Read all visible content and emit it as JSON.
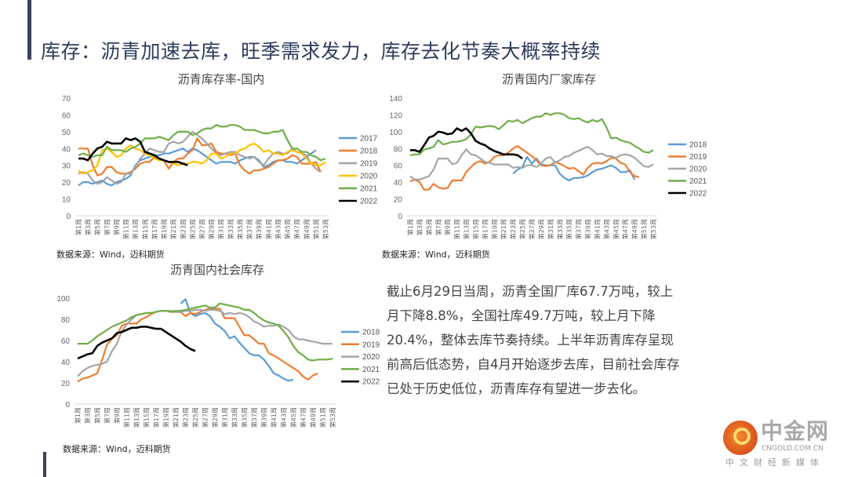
{
  "title": "库存：沥青加速去库，旺季需求发力，库存去化节奏大概率持续",
  "paragraph": "截止6月29日当周，沥青全国厂库67.7万吨，较上月下降8.8%，全国社库49.7万吨，较上月下降20.4%，整体去库节奏持续。上半年沥青库存呈现前高后低态势，自4月开始逐步去库，目前社会库存已处于历史低位，沥青库存有望进一步去化。",
  "watermark": {
    "cn": "中金网",
    "en": "CNGOLD.COM.CN",
    "tag": "中文财经新媒体"
  },
  "colors": {
    "2017": "#5b9bd5",
    "2018": "#ed7d31",
    "2019": "#a5a5a5",
    "2020": "#ffc000",
    "2021": "#70ad47",
    "2022": "#000000",
    "accent": "#3a4257"
  },
  "chart_data": [
    {
      "type": "line",
      "title": "沥青库存率-国内",
      "source": "数据来源：Wind，迈科期货",
      "ylim": [
        0,
        70
      ],
      "yticks": [
        0,
        10,
        20,
        30,
        40,
        50,
        60,
        70
      ],
      "x_labels": [
        "第1周",
        "第3周",
        "第5周",
        "第7周",
        "第9周",
        "第11周",
        "第13周",
        "第15周",
        "第17周",
        "第19周",
        "第21周",
        "第23周",
        "第25周",
        "第27周",
        "第29周",
        "第31周",
        "第33周",
        "第35周",
        "第37周",
        "第39周",
        "第41周",
        "第43周",
        "第45周",
        "第47周",
        "第49周",
        "第51周",
        "第53周"
      ],
      "legend": "right",
      "series": [
        {
          "name": "2017",
          "color": "#5b9bd5",
          "start_week": 1,
          "values": [
            18,
            20,
            20,
            19,
            20,
            21,
            19,
            18,
            20,
            21,
            22,
            24,
            30,
            33,
            34,
            35,
            36,
            36,
            37,
            37,
            38,
            39,
            40,
            38,
            40,
            39,
            37,
            35,
            33,
            31,
            32,
            32,
            32,
            31,
            33,
            34,
            35,
            35,
            33,
            29,
            30,
            32,
            33,
            33,
            32,
            32,
            31,
            33,
            35,
            37,
            39
          ]
        },
        {
          "name": "2018",
          "color": "#ed7d31",
          "start_week": 1,
          "values": [
            40,
            40,
            40,
            30,
            24,
            25,
            29,
            29,
            26,
            25,
            25,
            26,
            28,
            31,
            32,
            32,
            35,
            33,
            33,
            28,
            32,
            34,
            34,
            37,
            39,
            46,
            42,
            42,
            43,
            38,
            37,
            37,
            36,
            37,
            30,
            27,
            25,
            27,
            27,
            28,
            29,
            31,
            33,
            33,
            34,
            36,
            35,
            31,
            31,
            31,
            32,
            26
          ]
        },
        {
          "name": "2019",
          "color": "#a5a5a5",
          "start_week": 1,
          "values": [
            25,
            26,
            25,
            21,
            19,
            20,
            23,
            21,
            19,
            20,
            25,
            25,
            29,
            34,
            37,
            40,
            39,
            38,
            38,
            43,
            44,
            43,
            44,
            47,
            50,
            48,
            46,
            43,
            40,
            37,
            36,
            37,
            38,
            38,
            36,
            35,
            34,
            35,
            32,
            30,
            34,
            37,
            38,
            37,
            37,
            40,
            38,
            37,
            36,
            31,
            28,
            26
          ]
        },
        {
          "name": "2020",
          "color": "#ffc000",
          "start_week": 1,
          "values": [
            27,
            25,
            26,
            27,
            30,
            39,
            40,
            38,
            35,
            36,
            40,
            42,
            40,
            39,
            37,
            36,
            34,
            33,
            33,
            32,
            31,
            30,
            31,
            31,
            32,
            32,
            31,
            33,
            37,
            37,
            34,
            35,
            37,
            37,
            39,
            40,
            42,
            43,
            41,
            38,
            39,
            37,
            37,
            36,
            38,
            39,
            38,
            37,
            34,
            31,
            30,
            30,
            32
          ]
        },
        {
          "name": "2021",
          "color": "#70ad47",
          "start_week": 1,
          "values": [
            36,
            37,
            36,
            35,
            36,
            36,
            41,
            39,
            39,
            39,
            38,
            40,
            41,
            43,
            46,
            46,
            46,
            47,
            46,
            45,
            48,
            50,
            50,
            50,
            48,
            49,
            51,
            52,
            52,
            54,
            53,
            53,
            54,
            54,
            53,
            51,
            51,
            51,
            50,
            49,
            49,
            50,
            50,
            51,
            45,
            40,
            40,
            38,
            38,
            36,
            35,
            33,
            34
          ]
        },
        {
          "name": "2022",
          "color": "#000000",
          "start_week": 1,
          "values": [
            34,
            34,
            33,
            37,
            40,
            41,
            44,
            43,
            43,
            43,
            46,
            45,
            46,
            44,
            38,
            37,
            36,
            34,
            33,
            32,
            32,
            32,
            31,
            30
          ]
        }
      ]
    },
    {
      "type": "line",
      "title": "沥青国内厂家库存",
      "source": "数据来源：Wind，迈科期货",
      "ylim": [
        0,
        140
      ],
      "yticks": [
        0,
        20,
        40,
        60,
        80,
        100,
        120,
        140
      ],
      "x_labels": [
        "第1周",
        "第3周",
        "第5周",
        "第7周",
        "第9周",
        "第11周",
        "第13周",
        "第15周",
        "第17周",
        "第19周",
        "第21周",
        "第23周",
        "第25周",
        "第27周",
        "第29周",
        "第31周",
        "第33周",
        "第35周",
        "第37周",
        "第39周",
        "第41周",
        "第43周",
        "第45周",
        "第47周",
        "第49周",
        "第51周",
        "第53周"
      ],
      "legend": "right",
      "series": [
        {
          "name": "2018",
          "color": "#5b9bd5",
          "start_week": 23,
          "values": [
            50,
            55,
            58,
            70,
            62,
            68,
            61,
            60,
            60,
            60,
            50,
            45,
            42,
            45,
            45,
            46,
            48,
            52,
            55,
            56,
            58,
            60,
            57,
            52,
            52,
            54,
            43
          ]
        },
        {
          "name": "2019",
          "color": "#ed7d31",
          "start_week": 1,
          "values": [
            41,
            43,
            40,
            31,
            31,
            38,
            34,
            32,
            33,
            42,
            42,
            42,
            52,
            58,
            63,
            65,
            62,
            64,
            70,
            72,
            72,
            75,
            80,
            83,
            79,
            75,
            71,
            66,
            60,
            59,
            60,
            64,
            62,
            59,
            56,
            57,
            53,
            49,
            57,
            62,
            63,
            62,
            65,
            69,
            68,
            63,
            61,
            52,
            47,
            46
          ]
        },
        {
          "name": "2020",
          "color": "#a5a5a5",
          "start_week": 1,
          "values": [
            47,
            43,
            43,
            45,
            47,
            55,
            68,
            68,
            68,
            61,
            63,
            72,
            79,
            73,
            72,
            68,
            64,
            63,
            61,
            61,
            61,
            61,
            57,
            58,
            57,
            60,
            60,
            58,
            62,
            68,
            70,
            63,
            66,
            70,
            71,
            75,
            77,
            80,
            82,
            78,
            73,
            74,
            71,
            71,
            69,
            72,
            73,
            72,
            69,
            64,
            59,
            58,
            61
          ]
        },
        {
          "name": "2021",
          "color": "#70ad47",
          "start_week": 1,
          "values": [
            72,
            73,
            73,
            79,
            80,
            82,
            90,
            85,
            86,
            88,
            88,
            89,
            91,
            97,
            106,
            105,
            106,
            107,
            106,
            103,
            108,
            113,
            112,
            114,
            110,
            113,
            116,
            118,
            118,
            122,
            120,
            122,
            122,
            120,
            116,
            115,
            116,
            113,
            111,
            114,
            112,
            115,
            105,
            92,
            93,
            90,
            88,
            87,
            83,
            80,
            76,
            75,
            78
          ]
        },
        {
          "name": "2022",
          "color": "#000000",
          "start_week": 1,
          "values": [
            78,
            78,
            76,
            84,
            93,
            95,
            100,
            99,
            97,
            98,
            104,
            101,
            104,
            98,
            89,
            86,
            84,
            80,
            77,
            75,
            73,
            73,
            73,
            72,
            68
          ]
        }
      ]
    },
    {
      "type": "line",
      "title": "沥青国内社会库存",
      "source": "数据来源：Wind，迈科期货",
      "ylim": [
        0,
        100
      ],
      "yticks": [
        0,
        20,
        40,
        60,
        80,
        100
      ],
      "x_labels": [
        "第1周",
        "第3周",
        "第5周",
        "第7周",
        "第9周",
        "第11周",
        "第13周",
        "第15周",
        "第17周",
        "第19周",
        "第21周",
        "第23周",
        "第25周",
        "第27周",
        "第29周",
        "第31周",
        "第33周",
        "第35周",
        "第37周",
        "第39周",
        "第41周",
        "第43周",
        "第45周",
        "第47周",
        "第49周",
        "第51周",
        "第53周"
      ],
      "legend": "right",
      "series": [
        {
          "name": "2018",
          "color": "#5b9bd5",
          "start_week": 22,
          "values": [
            95,
            99,
            86,
            83,
            85,
            86,
            83,
            76,
            73,
            69,
            62,
            64,
            58,
            53,
            48,
            46,
            46,
            42,
            36,
            29,
            27,
            24,
            22,
            23
          ]
        },
        {
          "name": "2019",
          "color": "#ed7d31",
          "start_week": 1,
          "values": [
            21,
            24,
            25,
            27,
            29,
            42,
            56,
            62,
            65,
            74,
            76,
            76,
            76,
            80,
            82,
            85,
            87,
            88,
            88,
            87,
            87,
            87,
            83,
            86,
            85,
            87,
            89,
            90,
            90,
            90,
            81,
            81,
            81,
            73,
            65,
            65,
            61,
            57,
            57,
            48,
            46,
            43,
            40,
            37,
            34,
            31,
            26,
            23,
            27,
            29
          ]
        },
        {
          "name": "2020",
          "color": "#a5a5a5",
          "start_week": 1,
          "values": [
            26,
            31,
            34,
            36,
            37,
            38,
            40,
            50,
            57,
            69,
            75,
            80,
            84,
            85,
            86,
            86,
            87,
            88,
            88,
            88,
            87,
            87,
            88,
            88,
            89,
            89,
            88,
            89,
            89,
            88,
            85,
            86,
            85,
            86,
            85,
            82,
            78,
            76,
            73,
            74,
            74,
            75,
            73,
            70,
            64,
            61,
            61,
            60,
            59,
            58,
            57,
            57,
            57
          ]
        },
        {
          "name": "2021",
          "color": "#70ad47",
          "start_week": 1,
          "values": [
            57,
            57,
            57,
            60,
            64,
            67,
            70,
            73,
            75,
            77,
            79,
            82,
            84,
            85,
            86,
            86,
            87,
            88,
            88,
            87,
            88,
            88,
            89,
            90,
            91,
            92,
            93,
            91,
            91,
            95,
            94,
            93,
            92,
            91,
            89,
            89,
            86,
            82,
            79,
            77,
            76,
            74,
            69,
            63,
            55,
            49,
            46,
            42,
            41,
            42,
            42,
            42,
            43
          ]
        },
        {
          "name": "2022",
          "color": "#000000",
          "start_week": 1,
          "values": [
            43,
            45,
            47,
            48,
            55,
            58,
            60,
            62,
            67,
            68,
            70,
            72,
            72,
            73,
            73,
            72,
            71,
            71,
            68,
            65,
            62,
            59,
            55,
            52,
            50
          ]
        }
      ]
    }
  ]
}
